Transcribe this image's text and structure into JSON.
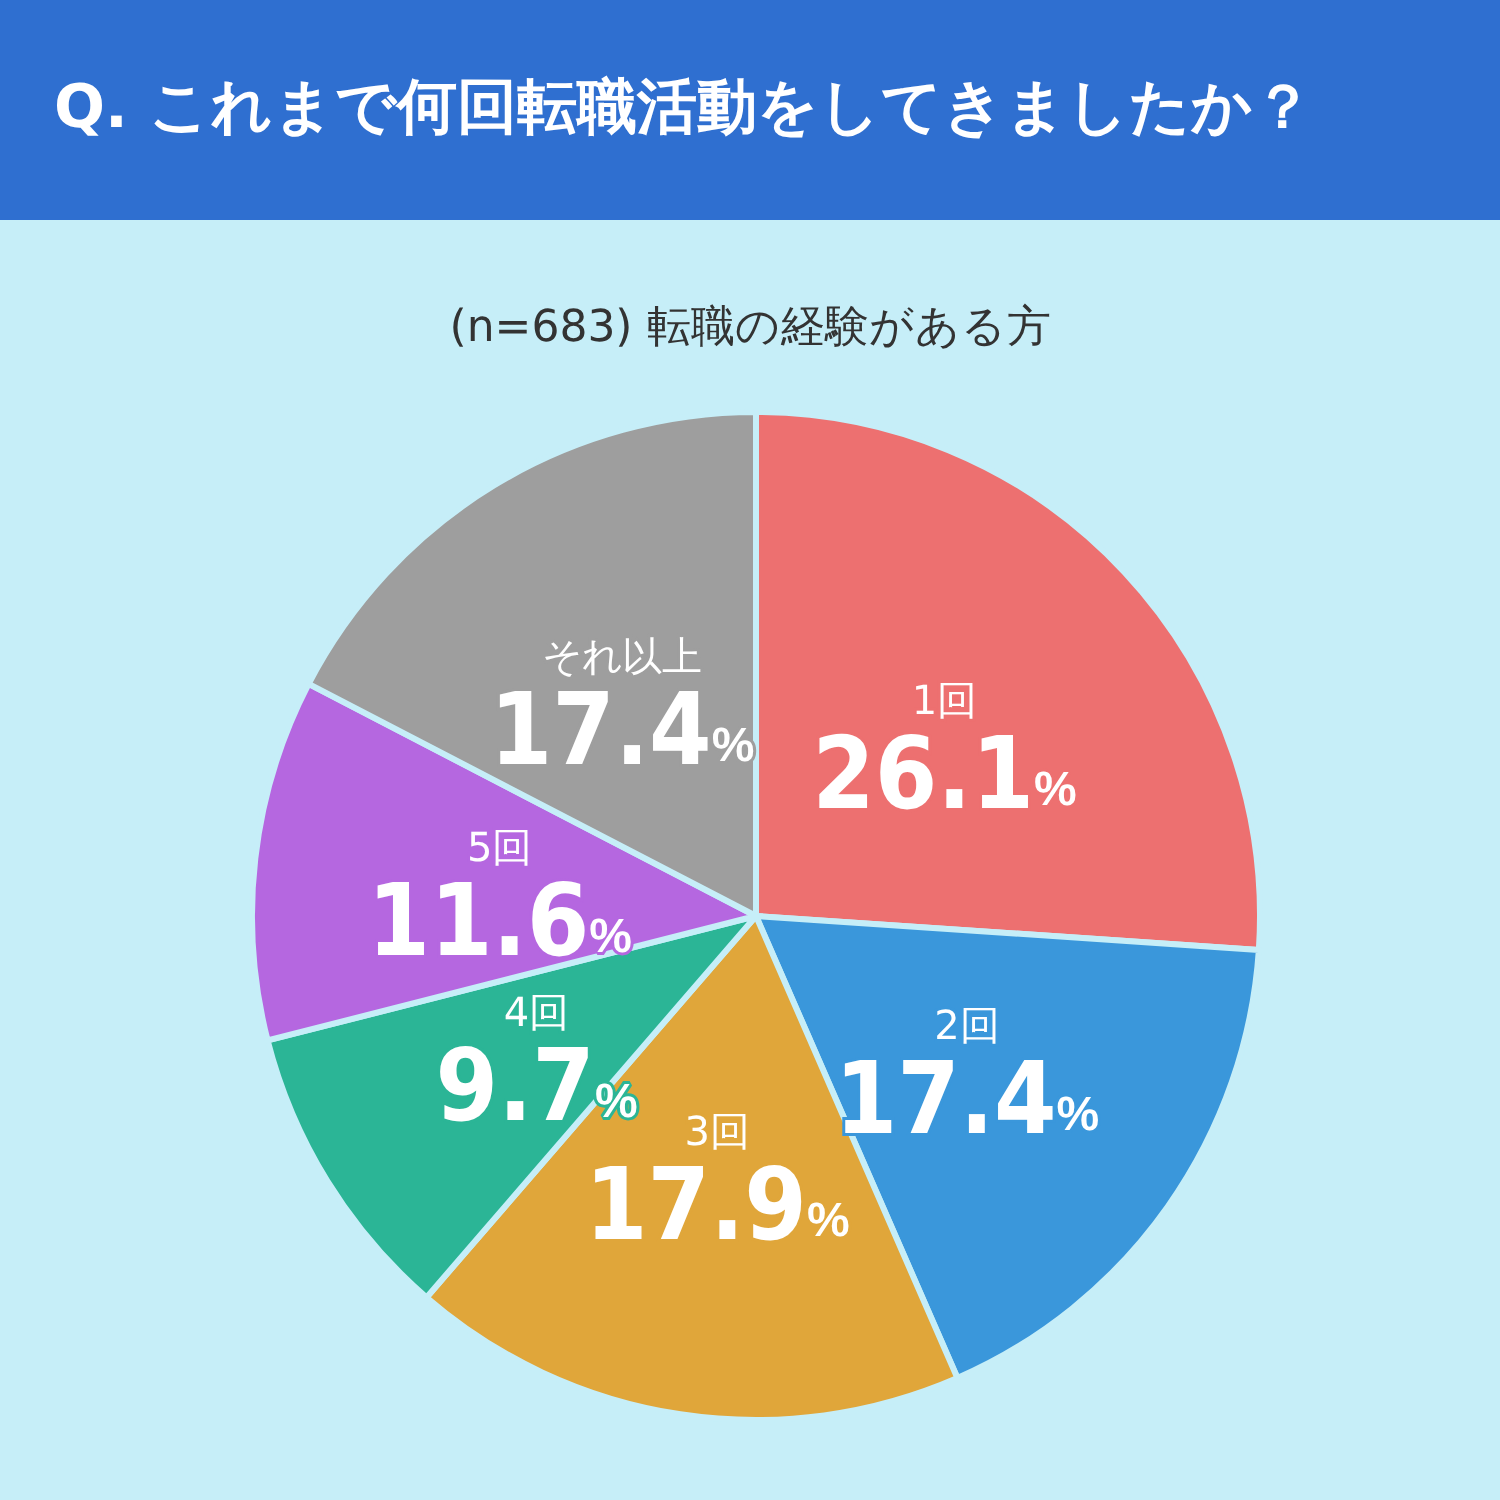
{
  "chart_data": {
    "type": "pie",
    "title": "Q. これまで何回転職活動をしてきましたか？",
    "subtitle": "(n=683) 転職の経験がある方",
    "categories": [
      "1回",
      "2回",
      "3回",
      "4回",
      "5回",
      "それ以上"
    ],
    "values": [
      26.1,
      17.4,
      17.9,
      9.7,
      11.6,
      17.4
    ],
    "value_labels": [
      "26.1%",
      "17.4%",
      "17.9%",
      "9.7%",
      "11.6%",
      "17.4%"
    ],
    "colors": [
      "#ed7070",
      "#3a97db",
      "#e0a63a",
      "#2bb596",
      "#b567e0",
      "#9e9e9e"
    ],
    "legend": false
  }
}
